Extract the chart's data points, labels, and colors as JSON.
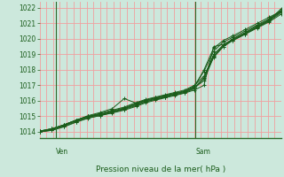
{
  "xlabel": "Pression niveau de la mer( hPa )",
  "bg_color": "#cce8dc",
  "grid_color_h": "#f0a0a0",
  "grid_color_v": "#f0a0a0",
  "line_color": "#1a5c1a",
  "axis_color": "#2a6b2a",
  "tick_color": "#1a5c1a",
  "label_color": "#1a5c1a",
  "ylim": [
    1013.6,
    1022.4
  ],
  "yticks": [
    1014,
    1015,
    1016,
    1017,
    1018,
    1019,
    1020,
    1021,
    1022
  ],
  "vline_ven": 0.068,
  "vline_sam": 0.645,
  "num_v_gridlines": 36,
  "series": [
    [
      0.0,
      1014.0,
      0.05,
      1014.15,
      0.1,
      1014.45,
      0.15,
      1014.75,
      0.2,
      1015.0,
      0.25,
      1015.1,
      0.3,
      1015.3,
      0.35,
      1015.5,
      0.4,
      1015.8,
      0.44,
      1016.0,
      0.48,
      1016.15,
      0.52,
      1016.3,
      0.56,
      1016.45,
      0.6,
      1016.6,
      0.64,
      1016.9,
      0.68,
      1018.0,
      0.72,
      1019.4,
      0.76,
      1019.9,
      0.8,
      1020.2,
      0.85,
      1020.6,
      0.9,
      1021.0,
      0.95,
      1021.4,
      1.0,
      1021.8
    ],
    [
      0.0,
      1014.0,
      0.05,
      1014.1,
      0.1,
      1014.35,
      0.15,
      1014.65,
      0.2,
      1014.9,
      0.25,
      1015.05,
      0.3,
      1015.25,
      0.35,
      1015.45,
      0.4,
      1015.7,
      0.44,
      1015.95,
      0.48,
      1016.1,
      0.52,
      1016.25,
      0.56,
      1016.4,
      0.6,
      1016.55,
      0.64,
      1016.85,
      0.68,
      1017.5,
      0.72,
      1019.0,
      0.76,
      1019.6,
      0.8,
      1020.0,
      0.85,
      1020.4,
      0.9,
      1020.8,
      0.95,
      1021.2,
      1.0,
      1021.75
    ],
    [
      0.0,
      1014.05,
      0.05,
      1014.2,
      0.1,
      1014.45,
      0.15,
      1014.75,
      0.2,
      1015.0,
      0.25,
      1015.15,
      0.3,
      1015.35,
      0.35,
      1015.55,
      0.4,
      1015.85,
      0.44,
      1016.05,
      0.48,
      1016.2,
      0.52,
      1016.35,
      0.56,
      1016.5,
      0.6,
      1016.65,
      0.64,
      1016.95,
      0.68,
      1017.9,
      0.72,
      1019.2,
      0.76,
      1019.8,
      0.8,
      1020.1,
      0.85,
      1020.5,
      0.9,
      1020.9,
      0.95,
      1021.3,
      1.0,
      1021.85
    ],
    [
      0.0,
      1014.0,
      0.05,
      1014.15,
      0.1,
      1014.4,
      0.15,
      1014.7,
      0.2,
      1014.95,
      0.25,
      1015.1,
      0.3,
      1015.3,
      0.35,
      1015.5,
      0.4,
      1015.75,
      0.44,
      1015.95,
      0.48,
      1016.1,
      0.52,
      1016.25,
      0.56,
      1016.38,
      0.6,
      1016.52,
      0.64,
      1016.78,
      0.68,
      1017.45,
      0.72,
      1018.8,
      0.76,
      1019.5,
      0.8,
      1019.95,
      0.85,
      1020.35,
      0.9,
      1020.75,
      0.95,
      1021.15,
      1.0,
      1021.7
    ],
    [
      0.0,
      1014.05,
      0.05,
      1014.2,
      0.1,
      1014.45,
      0.15,
      1014.75,
      0.2,
      1015.0,
      0.25,
      1015.2,
      0.3,
      1015.4,
      0.35,
      1015.6,
      0.4,
      1015.9,
      0.44,
      1016.1,
      0.48,
      1016.25,
      0.52,
      1016.4,
      0.56,
      1016.55,
      0.6,
      1016.7,
      0.64,
      1017.0,
      0.68,
      1017.6,
      0.72,
      1018.9,
      0.76,
      1019.6,
      0.8,
      1020.0,
      0.85,
      1020.4,
      0.9,
      1020.85,
      0.95,
      1021.25,
      1.0,
      1021.8
    ],
    [
      0.0,
      1014.0,
      0.05,
      1014.1,
      0.1,
      1014.32,
      0.15,
      1014.62,
      0.2,
      1014.88,
      0.25,
      1015.05,
      0.3,
      1015.22,
      0.35,
      1015.4,
      0.4,
      1015.65,
      0.44,
      1015.88,
      0.48,
      1016.05,
      0.52,
      1016.2,
      0.56,
      1016.35,
      0.6,
      1016.5,
      0.64,
      1016.7,
      0.68,
      1017.0,
      0.72,
      1019.5,
      0.76,
      1019.65,
      0.8,
      1019.9,
      0.85,
      1020.3,
      0.9,
      1020.7,
      0.95,
      1021.1,
      1.0,
      1021.6
    ],
    [
      0.0,
      1014.05,
      0.05,
      1014.2,
      0.1,
      1014.45,
      0.15,
      1014.75,
      0.2,
      1015.05,
      0.25,
      1015.25,
      0.3,
      1015.5,
      0.35,
      1016.15,
      0.4,
      1015.85,
      0.44,
      1016.05,
      0.48,
      1016.2,
      0.52,
      1016.35,
      0.56,
      1016.48,
      0.6,
      1016.6,
      0.64,
      1016.85,
      0.68,
      1017.3,
      0.72,
      1018.85,
      0.76,
      1019.5,
      0.8,
      1019.9,
      0.85,
      1020.3,
      0.9,
      1020.75,
      0.95,
      1021.2,
      1.0,
      1021.95
    ]
  ]
}
